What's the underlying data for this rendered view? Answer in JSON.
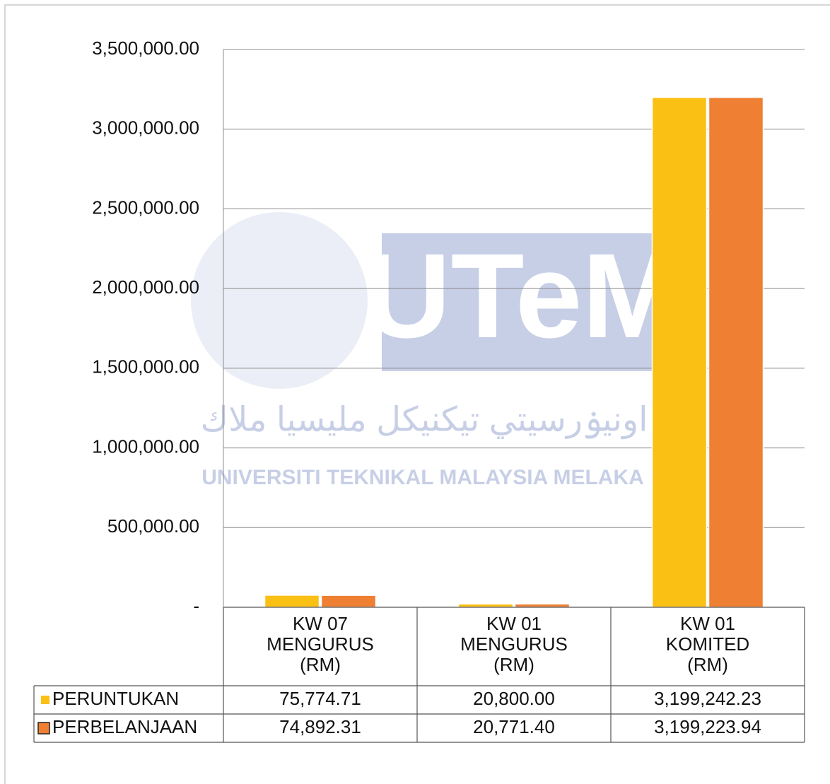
{
  "chart_data": {
    "type": "bar",
    "categories": [
      [
        "KW 07",
        "MENGURUS",
        "(RM)"
      ],
      [
        "KW 01",
        "MENGURUS",
        "(RM)"
      ],
      [
        "KW 01",
        "KOMITED",
        "(RM)"
      ]
    ],
    "series": [
      {
        "name": "PERUNTUKAN",
        "color": "#fbc014",
        "values": [
          75774.71,
          20800.0,
          3199242.23
        ],
        "value_labels": [
          "75,774.71",
          "20,800.00",
          "3,199,242.23"
        ]
      },
      {
        "name": "PERBELANJAAN",
        "color": "#ef7f33",
        "values": [
          74892.31,
          20771.4,
          3199223.94
        ],
        "value_labels": [
          "74,892.31",
          "20,771.40",
          "3,199,223.94"
        ]
      }
    ],
    "ylim": [
      0,
      3500000
    ],
    "yticks": [
      {
        "value": 0,
        "label": "-"
      },
      {
        "value": 500000,
        "label": "500,000.00"
      },
      {
        "value": 1000000,
        "label": "1,000,000.00"
      },
      {
        "value": 1500000,
        "label": "1,500,000.00"
      },
      {
        "value": 2000000,
        "label": "2,000,000.00"
      },
      {
        "value": 2500000,
        "label": "2,500,000.00"
      },
      {
        "value": 3000000,
        "label": "3,000,000.00"
      },
      {
        "value": 3500000,
        "label": "3,500,000.00"
      }
    ],
    "grid": true,
    "watermark": {
      "logo": "UTeM",
      "name": "UNIVERSITI TEKNIKAL MALAYSIA MELAKA",
      "jawi": "اونيۏرسيتي تيكنيكل مليسيا ملاك"
    }
  }
}
